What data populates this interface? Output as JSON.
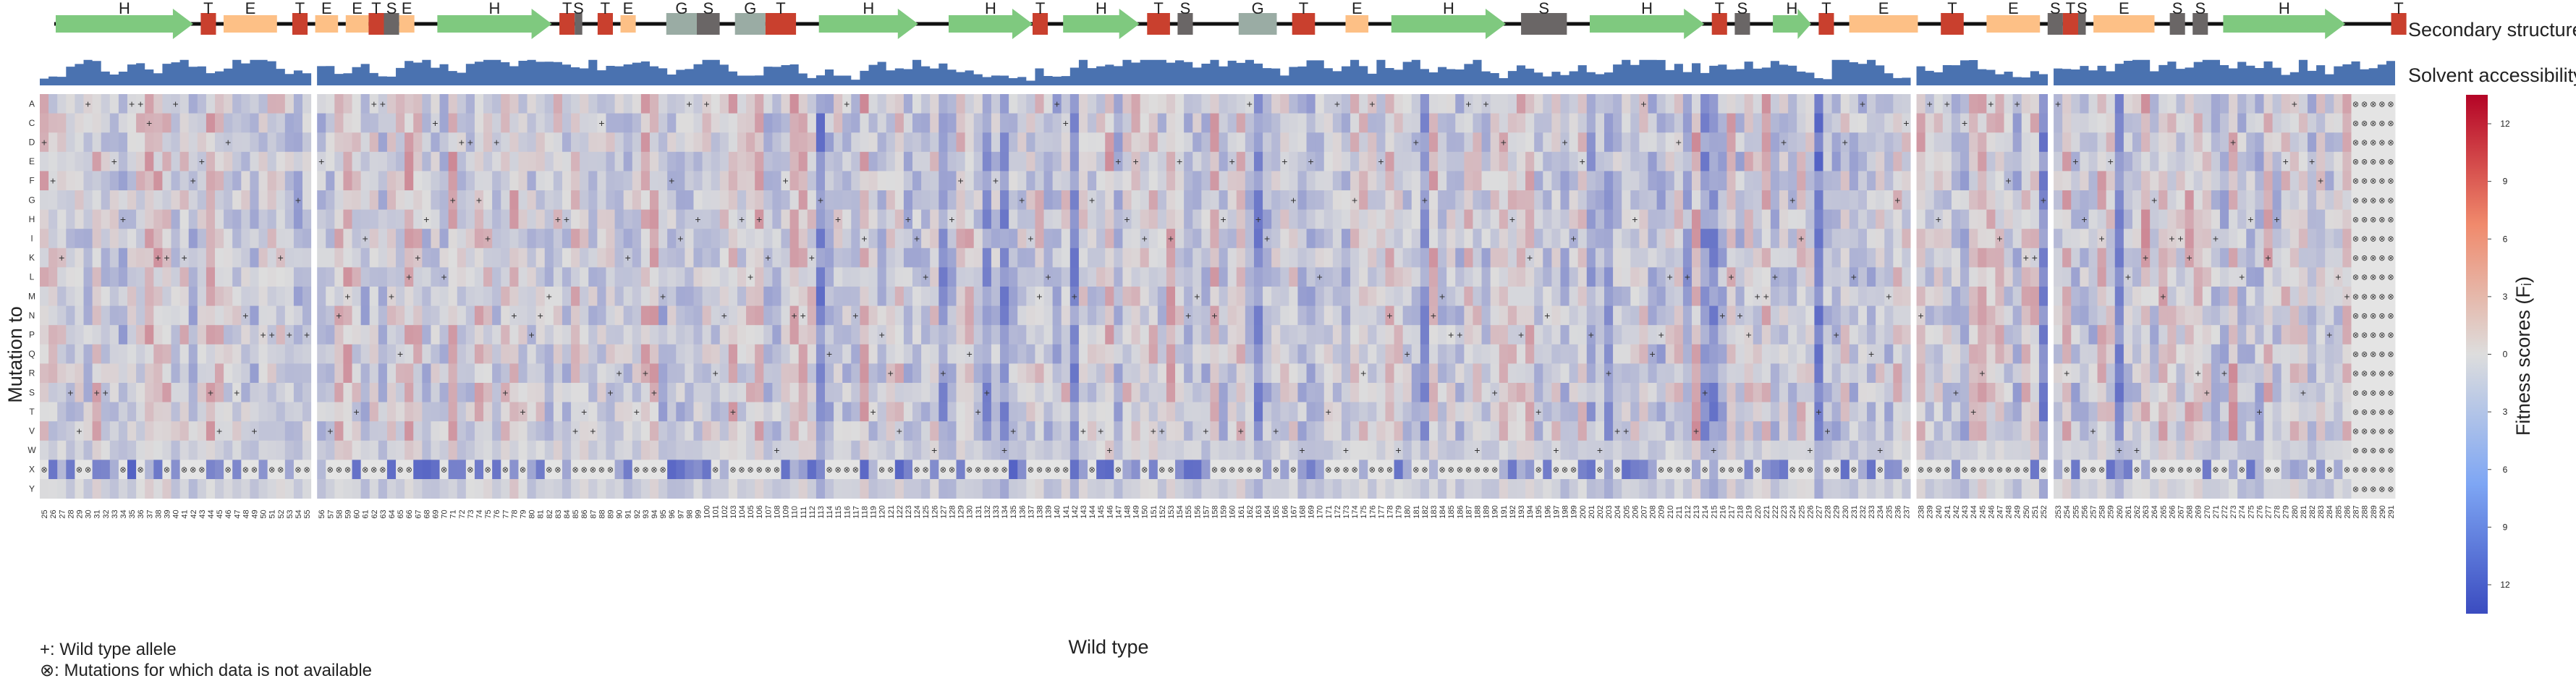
{
  "chart_data": {
    "type": "heatmap",
    "title": "",
    "xlabel": "Wild type",
    "ylabel": "Mutation to",
    "rows": [
      "A",
      "C",
      "D",
      "E",
      "F",
      "G",
      "H",
      "I",
      "K",
      "L",
      "M",
      "N",
      "P",
      "Q",
      "R",
      "S",
      "T",
      "V",
      "W",
      "X",
      "Y"
    ],
    "positions": {
      "start": 25,
      "end": 291,
      "gaps_after": [
        55,
        237,
        252
      ]
    },
    "colorbar": {
      "label": "Fitness scores (Fᵢ)",
      "ticks": [
        "12",
        "9",
        "6",
        "3",
        "0",
        "3",
        "6",
        "9",
        "12"
      ],
      "colors": {
        "high": "#b40426",
        "mid": "#dddddd",
        "low": "#3b4cc0"
      }
    },
    "tracks": {
      "secondary_structure": {
        "label": "Secondary structure",
        "segments": [
          {
            "type": "H",
            "start": 25,
            "end": 42
          },
          {
            "type": "T",
            "start": 44,
            "end": 45
          },
          {
            "type": "E",
            "start": 47,
            "end": 53
          },
          {
            "type": "T",
            "start": 56,
            "end": 57
          },
          {
            "type": "E",
            "start": 59,
            "end": 61
          },
          {
            "type": "E",
            "start": 63,
            "end": 65
          },
          {
            "type": "T",
            "start": 66,
            "end": 67
          },
          {
            "type": "S",
            "start": 68,
            "end": 69
          },
          {
            "type": "E",
            "start": 70,
            "end": 71
          },
          {
            "type": "H",
            "start": 75,
            "end": 89
          },
          {
            "type": "T",
            "start": 91,
            "end": 92
          },
          {
            "type": "S",
            "start": 93,
            "end": 93
          },
          {
            "type": "T",
            "start": 96,
            "end": 97
          },
          {
            "type": "E",
            "start": 99,
            "end": 100
          },
          {
            "type": "G",
            "start": 105,
            "end": 108
          },
          {
            "type": "S",
            "start": 109,
            "end": 111
          },
          {
            "type": "G",
            "start": 114,
            "end": 117
          },
          {
            "type": "T",
            "start": 118,
            "end": 121
          },
          {
            "type": "H",
            "start": 125,
            "end": 137
          },
          {
            "type": "H",
            "start": 142,
            "end": 152
          },
          {
            "type": "T",
            "start": 153,
            "end": 154
          },
          {
            "type": "H",
            "start": 157,
            "end": 166
          },
          {
            "type": "T",
            "start": 168,
            "end": 170
          },
          {
            "type": "S",
            "start": 172,
            "end": 173
          },
          {
            "type": "G",
            "start": 180,
            "end": 184
          },
          {
            "type": "T",
            "start": 187,
            "end": 189
          },
          {
            "type": "E",
            "start": 194,
            "end": 196
          },
          {
            "type": "H",
            "start": 200,
            "end": 214
          },
          {
            "type": "S",
            "start": 217,
            "end": 222
          },
          {
            "type": "H",
            "start": 226,
            "end": 240
          },
          {
            "type": "T",
            "start": 242,
            "end": 243
          },
          {
            "type": "S",
            "start": 245,
            "end": 246
          },
          {
            "type": "H",
            "start": 250,
            "end": 254
          },
          {
            "type": "T",
            "start": 256,
            "end": 257
          },
          {
            "type": "E",
            "start": 260,
            "end": 268
          },
          {
            "type": "T",
            "start": 272,
            "end": 274
          },
          {
            "type": "E",
            "start": 278,
            "end": 284
          },
          {
            "type": "S",
            "start": 286,
            "end": 287
          },
          {
            "type": "T",
            "start": 288,
            "end": 289
          },
          {
            "type": "S",
            "start": 290,
            "end": 290
          },
          {
            "type": "E",
            "start": 292,
            "end": 299
          },
          {
            "type": "S",
            "start": 302,
            "end": 303
          },
          {
            "type": "S",
            "start": 305,
            "end": 306
          },
          {
            "type": "H",
            "start": 309,
            "end": 324
          },
          {
            "type": "T",
            "start": 331,
            "end": 332
          }
        ],
        "colors": {
          "H": "#7fc97f",
          "E": "#fdc086",
          "T": "#c9402e",
          "S": "#6a6666",
          "G": "#9aaca4"
        }
      },
      "solvent_accessibility": {
        "label": "Solvent accessibility",
        "color": "#4a72b0"
      }
    },
    "legend": [
      {
        "symbol": "+",
        "text": "+: Wild type allele"
      },
      {
        "symbol": "⊗",
        "text": "⊗: Mutations for which data is not available"
      }
    ]
  }
}
